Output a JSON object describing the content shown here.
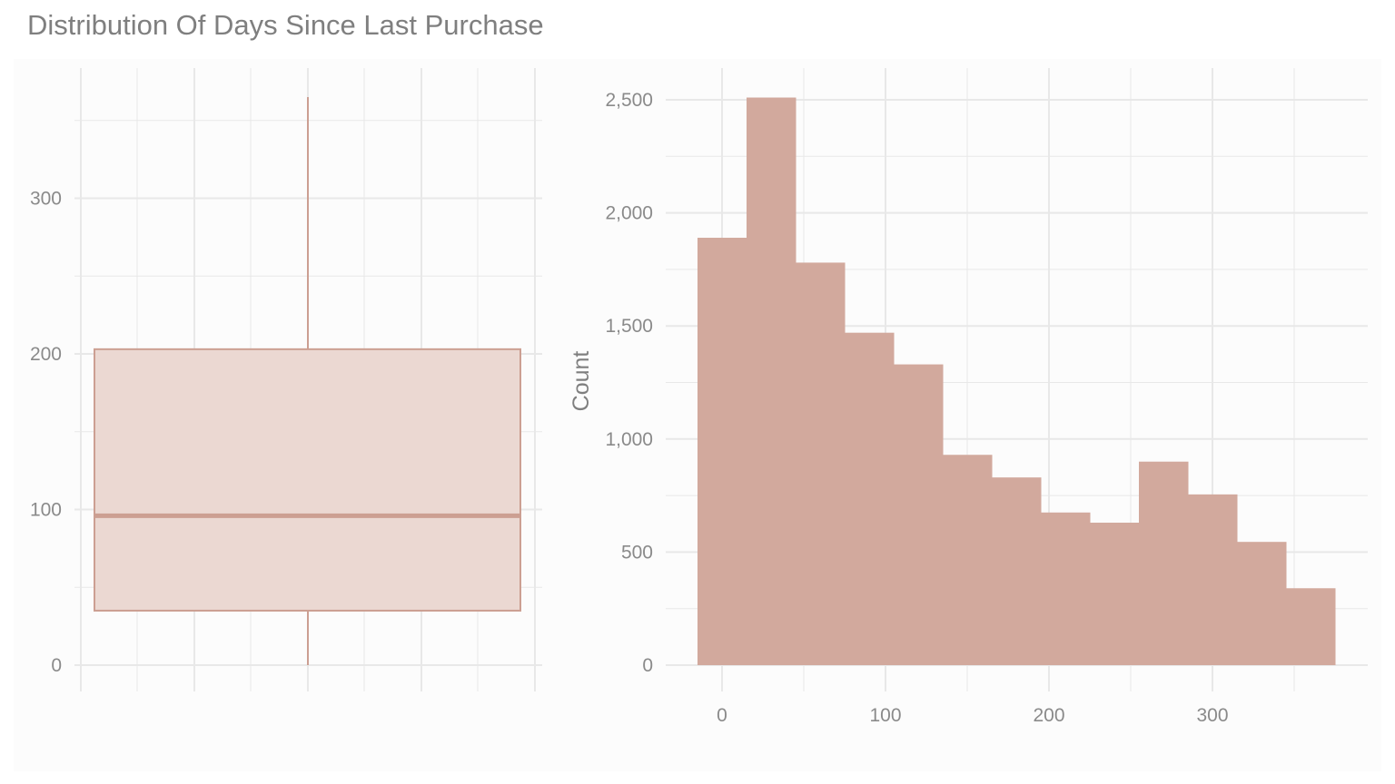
{
  "title": "Distribution Of Days Since Last Purchase",
  "colors": {
    "background": "#ffffff",
    "panel": "#fcfcfc",
    "grid": "#e8e8e8",
    "bar_fill": "#d2a99d",
    "box_fill": "#ebd8d2",
    "box_line": "#cc9f92",
    "text": "#8a8a8a"
  },
  "chart_data": [
    {
      "type": "box",
      "ylim": [
        0,
        400
      ],
      "y_ticks": [
        0,
        100,
        200,
        300
      ],
      "y_tick_labels": [
        "0",
        "100",
        "200",
        "300"
      ],
      "xlabel": "",
      "ylabel": "",
      "grid": true,
      "stats": {
        "min": 0,
        "q1": 35,
        "median": 96,
        "q3": 203,
        "max": 365
      }
    },
    {
      "type": "bar",
      "xlabel": "",
      "ylabel": "Count",
      "grid": true,
      "xlim": [
        -15,
        375
      ],
      "ylim": [
        0,
        2550
      ],
      "x_ticks": [
        0,
        100,
        200,
        300
      ],
      "x_tick_labels": [
        "0",
        "100",
        "200",
        "300"
      ],
      "y_ticks": [
        0,
        500,
        1000,
        1500,
        2000,
        2500
      ],
      "y_tick_labels": [
        "0",
        "500",
        "1,000",
        "1,500",
        "2,000",
        "2,500"
      ],
      "bin_width": 30,
      "bins": [
        {
          "start": -15,
          "end": 15,
          "count": 1890
        },
        {
          "start": 15,
          "end": 45,
          "count": 2510
        },
        {
          "start": 45,
          "end": 75,
          "count": 1780
        },
        {
          "start": 75,
          "end": 105,
          "count": 1470
        },
        {
          "start": 105,
          "end": 135,
          "count": 1330
        },
        {
          "start": 135,
          "end": 165,
          "count": 930
        },
        {
          "start": 165,
          "end": 195,
          "count": 830
        },
        {
          "start": 195,
          "end": 225,
          "count": 675
        },
        {
          "start": 225,
          "end": 255,
          "count": 630
        },
        {
          "start": 255,
          "end": 285,
          "count": 900
        },
        {
          "start": 285,
          "end": 315,
          "count": 755
        },
        {
          "start": 315,
          "end": 345,
          "count": 545
        },
        {
          "start": 345,
          "end": 375,
          "count": 340
        }
      ]
    }
  ]
}
